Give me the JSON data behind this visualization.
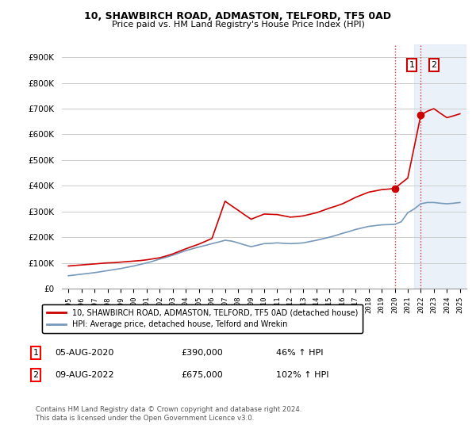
{
  "title": "10, SHAWBIRCH ROAD, ADMASTON, TELFORD, TF5 0AD",
  "subtitle": "Price paid vs. HM Land Registry's House Price Index (HPI)",
  "legend_line1": "10, SHAWBIRCH ROAD, ADMASTON, TELFORD, TF5 0AD (detached house)",
  "legend_line2": "HPI: Average price, detached house, Telford and Wrekin",
  "footnote": "Contains HM Land Registry data © Crown copyright and database right 2024.\nThis data is licensed under the Open Government Licence v3.0.",
  "annotation1_label": "1",
  "annotation1_date": "05-AUG-2020",
  "annotation1_price": "£390,000",
  "annotation1_hpi": "46% ↑ HPI",
  "annotation2_label": "2",
  "annotation2_date": "09-AUG-2022",
  "annotation2_price": "£675,000",
  "annotation2_hpi": "102% ↑ HPI",
  "red_color": "#cc0000",
  "blue_color": "#7799bb",
  "shade_color": "#c8d8f0",
  "ylim": [
    0,
    950000
  ],
  "yticks": [
    0,
    100000,
    200000,
    300000,
    400000,
    500000,
    600000,
    700000,
    800000,
    900000
  ],
  "hpi_x": [
    1995,
    1995.5,
    1996,
    1996.5,
    1997,
    1997.5,
    1998,
    1998.5,
    1999,
    1999.5,
    2000,
    2000.5,
    2001,
    2001.5,
    2002,
    2002.5,
    2003,
    2003.5,
    2004,
    2004.5,
    2005,
    2005.5,
    2006,
    2006.5,
    2007,
    2007.5,
    2008,
    2008.5,
    2009,
    2009.5,
    2010,
    2010.5,
    2011,
    2011.5,
    2012,
    2012.5,
    2013,
    2013.5,
    2014,
    2014.5,
    2015,
    2015.5,
    2016,
    2016.5,
    2017,
    2017.5,
    2018,
    2018.5,
    2019,
    2019.5,
    2020,
    2020.5,
    2021,
    2021.5,
    2022,
    2022.5,
    2023,
    2023.5,
    2024,
    2024.5,
    2025
  ],
  "hpi_y": [
    50000,
    53000,
    56000,
    59000,
    62000,
    66000,
    70000,
    74000,
    78000,
    83000,
    88000,
    94000,
    100000,
    107000,
    115000,
    122000,
    130000,
    139000,
    148000,
    155000,
    162000,
    168000,
    175000,
    181000,
    188000,
    185000,
    178000,
    170000,
    163000,
    169000,
    175000,
    176000,
    178000,
    176000,
    175000,
    176000,
    178000,
    183000,
    188000,
    194000,
    200000,
    207000,
    215000,
    222000,
    230000,
    236000,
    242000,
    245000,
    248000,
    249000,
    250000,
    260000,
    295000,
    310000,
    330000,
    335000,
    335000,
    332000,
    330000,
    332000,
    335000
  ],
  "price_x": [
    1995,
    1995.5,
    1996,
    1996.5,
    1997,
    1997.5,
    1998,
    1998.5,
    1999,
    1999.5,
    2000,
    2000.5,
    2001,
    2001.5,
    2002,
    2002.5,
    2003,
    2003.5,
    2004,
    2004.5,
    2005,
    2005.5,
    2006,
    2006.5,
    2007,
    2007.5,
    2008,
    2008.5,
    2009,
    2009.5,
    2010,
    2010.5,
    2011,
    2011.5,
    2012,
    2012.5,
    2013,
    2013.5,
    2014,
    2014.5,
    2015,
    2015.5,
    2016,
    2016.5,
    2017,
    2017.5,
    2018,
    2018.5,
    2019,
    2019.5,
    2020,
    2020.5,
    2021,
    2021.5,
    2022,
    2022.5,
    2023,
    2023.5,
    2024,
    2024.5,
    2025
  ],
  "price_y": [
    88000,
    90000,
    92000,
    94000,
    96000,
    98000,
    100000,
    101000,
    103000,
    105000,
    107000,
    109000,
    112000,
    116000,
    120000,
    127000,
    135000,
    145000,
    155000,
    164000,
    173000,
    184000,
    195000,
    267000,
    340000,
    322000,
    305000,
    287000,
    270000,
    280000,
    290000,
    289000,
    288000,
    283000,
    278000,
    280000,
    283000,
    289000,
    295000,
    304000,
    313000,
    321000,
    330000,
    342000,
    355000,
    365000,
    375000,
    380000,
    385000,
    387000,
    390000,
    410000,
    430000,
    552000,
    675000,
    690000,
    700000,
    682000,
    665000,
    672000,
    680000
  ],
  "point1_x": 2020,
  "point1_y": 390000,
  "point2_x": 2022,
  "point2_y": 675000,
  "shade_x_start": 2021.5,
  "shade_x_end": 2025.5,
  "xmin": 1994.5,
  "xmax": 2025.5
}
